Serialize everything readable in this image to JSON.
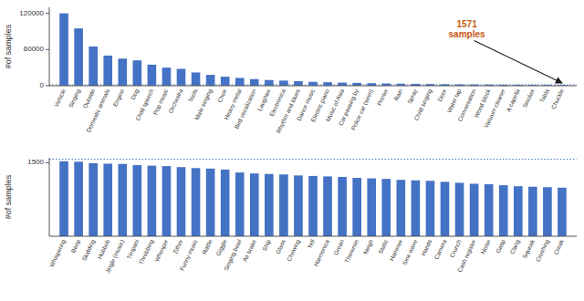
{
  "chart_data": [
    {
      "type": "bar",
      "categories": [
        "Vehicle",
        "Singing",
        "Outside",
        "Domestic animals",
        "Engine",
        "Dog",
        "Child speech",
        "Pop music",
        "Orchestra",
        "Tools",
        "Male singing",
        "Choir",
        "Heavy metal",
        "Bird vocalization",
        "Laughter",
        "Electronica",
        "Rhythm and blues",
        "Dance music",
        "Electric piano",
        "Music of Asia",
        "Car passing by",
        "Police car (siren)",
        "Printer",
        "Rain",
        "Spray",
        "Child singing",
        "Door",
        "Water tap",
        "Conversation",
        "Wood block",
        "Vacuum cleaner",
        "A capella",
        "Snicker",
        "Tabla",
        "Chuckle"
      ],
      "values": [
        120000,
        95000,
        65000,
        50000,
        45000,
        42000,
        35000,
        30000,
        28000,
        22000,
        18000,
        15000,
        13000,
        11000,
        9500,
        8500,
        7500,
        6500,
        5800,
        5200,
        4800,
        4200,
        3800,
        3400,
        3100,
        2800,
        2500,
        2200,
        2000,
        1800,
        1600,
        1400,
        1300,
        1200,
        1100
      ],
      "color": "#4472c4",
      "y_label": "#of samples",
      "ylim": [
        0,
        130000
      ],
      "yticks": [
        0,
        60000,
        120000
      ],
      "hline": 1571,
      "annotations": [
        {
          "text": "1571\nsamples",
          "color": "#c55a11"
        }
      ],
      "grid": false
    },
    {
      "type": "bar",
      "categories": [
        "Whispering",
        "Beep",
        "Skidding",
        "Hubbub",
        "Jingle (music)",
        "Timpani",
        "Throbbing",
        "Whimper",
        "Zither",
        "Funny music",
        "Rattle",
        "Giggle",
        "Singing bowl",
        "Air brake",
        "Ship",
        "Glass",
        "Chewing",
        "Yell",
        "Harmonica",
        "Groan",
        "Theremin",
        "Neigh",
        "Static",
        "Hammer",
        "Sine wave",
        "Hands",
        "Camera",
        "Crunch",
        "Cash register",
        "Noise",
        "Gasp",
        "Clang",
        "Squeak",
        "Crushing",
        "Creak"
      ],
      "values": [
        1530,
        1520,
        1490,
        1480,
        1475,
        1450,
        1440,
        1430,
        1410,
        1390,
        1380,
        1360,
        1300,
        1280,
        1270,
        1260,
        1240,
        1230,
        1220,
        1210,
        1190,
        1180,
        1170,
        1150,
        1140,
        1130,
        1110,
        1090,
        1070,
        1060,
        1040,
        1020,
        1010,
        1000,
        990
      ],
      "color": "#4472c4",
      "y_label": "#of samples",
      "ylim": [
        0,
        1600
      ],
      "yticks": [
        1500
      ],
      "hline": 1571,
      "grid": false
    }
  ]
}
